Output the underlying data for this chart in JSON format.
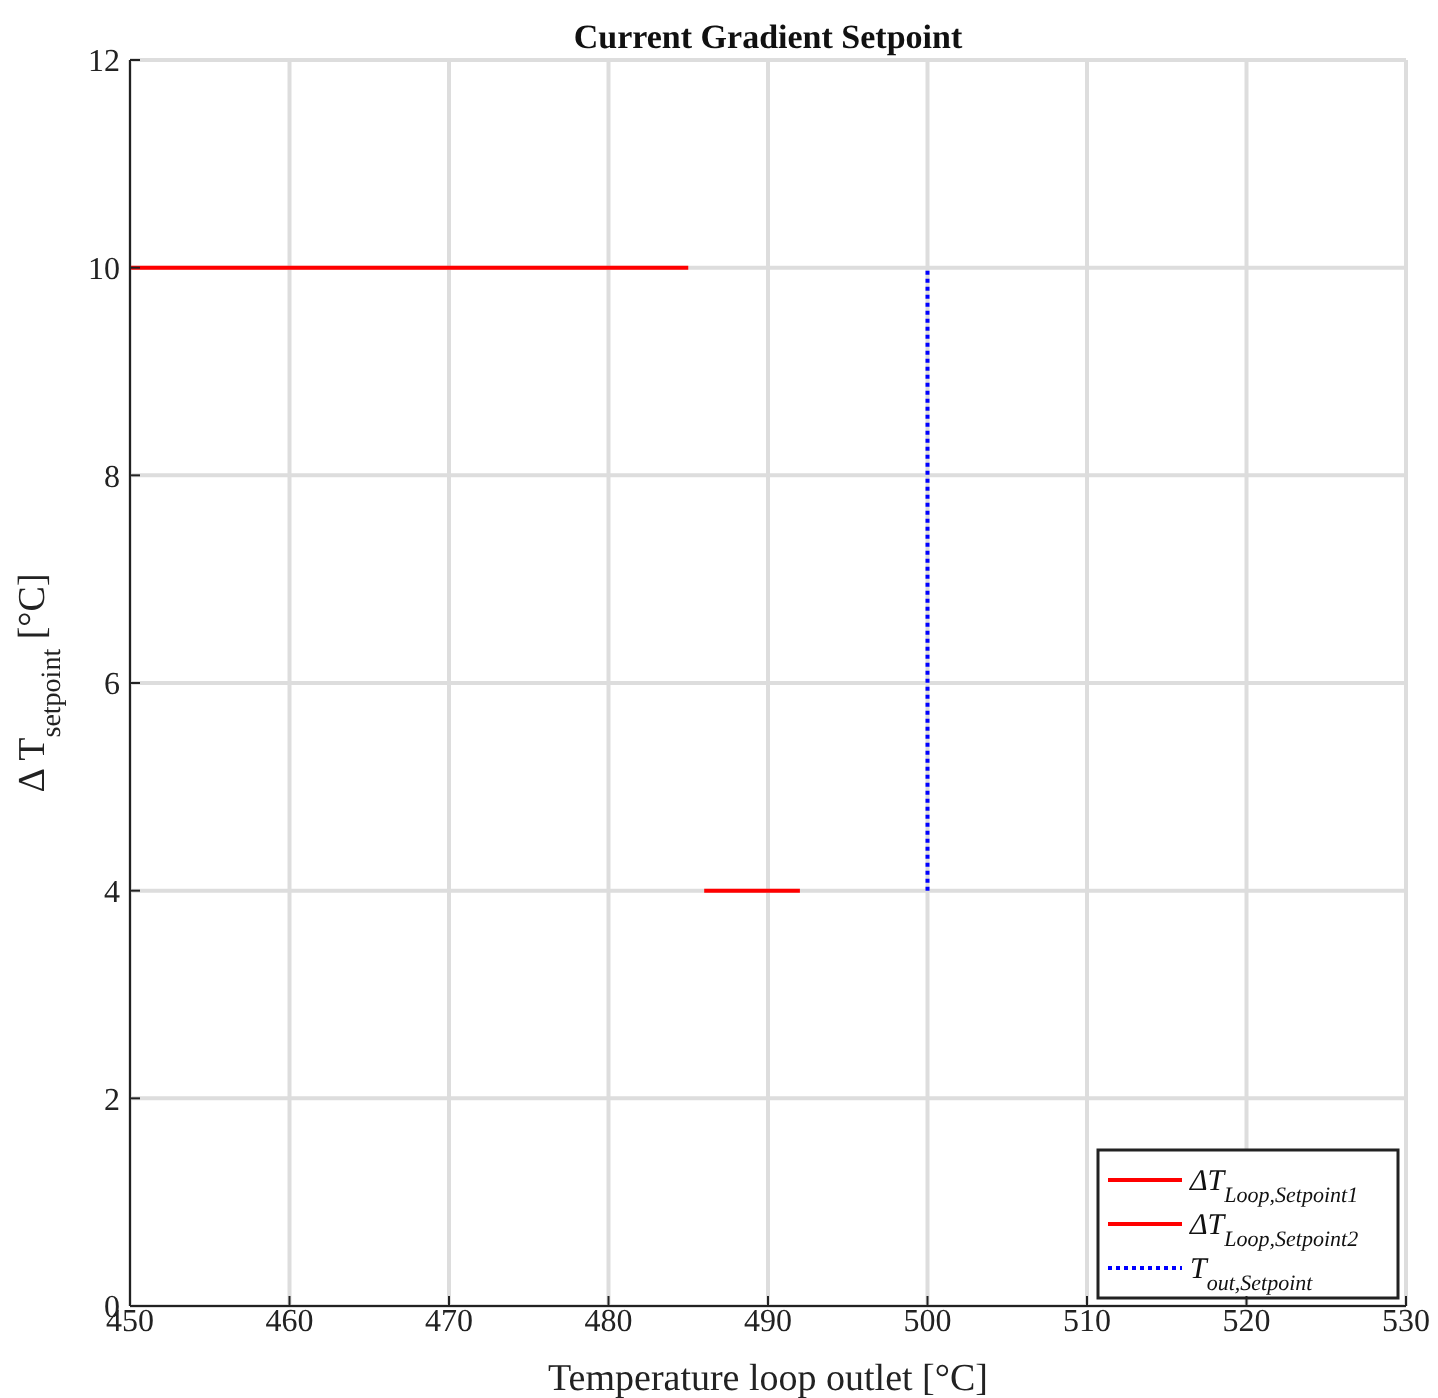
{
  "chart_data": {
    "type": "line",
    "title": "Current Gradient Setpoint",
    "xlabel": "Temperature loop outlet [°C]",
    "ylabel": "Δ T$_{setpoint}$ [°C]",
    "xlim": [
      450,
      530
    ],
    "xticks": [
      450,
      460,
      470,
      480,
      490,
      500,
      510,
      520,
      530
    ],
    "ylim": [
      0,
      12
    ],
    "yticks": [
      0,
      2,
      4,
      6,
      8,
      10,
      12
    ],
    "grid": true,
    "legend": "bottom right",
    "marker": "none",
    "series": [
      {
        "name": "ΔT$_{Loop,Setpoint1}$",
        "color": "#ff0000",
        "x": [
          450,
          485
        ],
        "values": [
          10,
          10
        ],
        "line_style": "solid"
      },
      {
        "name": "ΔT$_{Loop,Setpoint2}$",
        "color": "#ff0000",
        "x": [
          486,
          492
        ],
        "values": [
          4,
          4
        ],
        "line_style": "solid"
      },
      {
        "name": "T$_{out,Setpoint}$",
        "color": "#0000ff",
        "x": [
          500,
          500
        ],
        "values": [
          4,
          10
        ],
        "line_style": "dotted"
      }
    ]
  }
}
